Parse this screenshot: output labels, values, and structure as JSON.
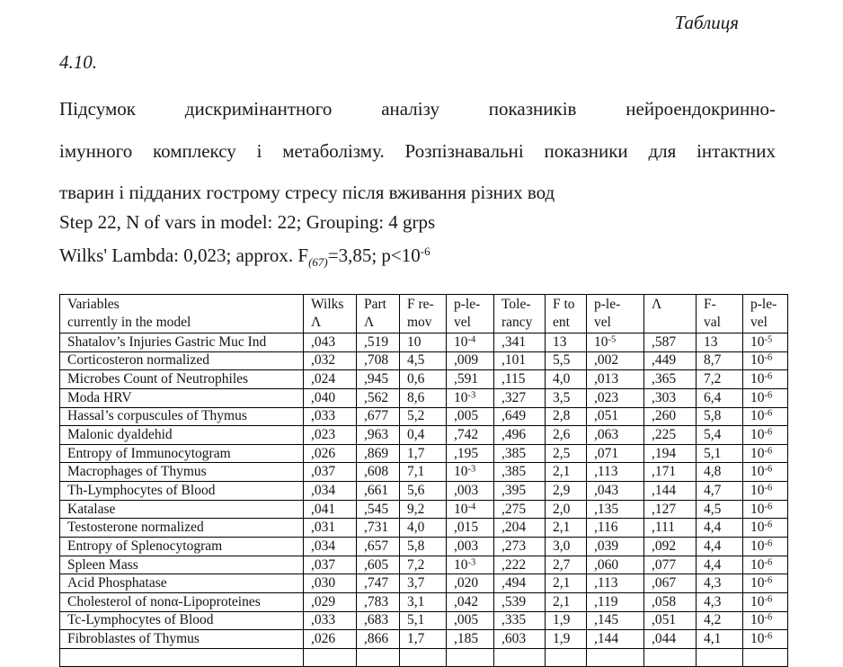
{
  "page": {
    "heading_word": "Таблиця",
    "heading_number": "4.10.",
    "paragraph_lines": [
      "Підсумок дискримінантного аналізу показників нейроендокринно-",
      "імунного комплексу і метаболізму. Розпізнавальні показники для інтактних",
      "тварин і підданих гострому стресу після вживання різних вод"
    ],
    "step_line": "Step 22, N of vars in model: 22; Grouping: 4 grps",
    "wilks_line": {
      "prefix": "Wilks' Lambda: 0,023; approx. F",
      "sub": "(67)",
      "mid": "=3,85; p<10",
      "sup": "-6"
    }
  },
  "table": {
    "headers": [
      "Variables\ncurrently in the model",
      "Wilks\nΛ",
      "Part\nΛ",
      "F re-\nmov",
      "p-le-\nvel",
      "Tole-\nrancy",
      "F to\nent",
      "p-le-\nvel",
      "Λ",
      "F-\nval",
      "p-le-\nvel"
    ],
    "rows": [
      [
        "Shatalov’s Injuries Gastric Muc Ind",
        ",043",
        ",519",
        "10",
        "10^-4",
        ",341",
        "13",
        "10^-5",
        ",587",
        "13",
        "10^-5"
      ],
      [
        "Corticosteron normalized",
        ",032",
        ",708",
        "4,5",
        ",009",
        ",101",
        "5,5",
        ",002",
        ",449",
        "8,7",
        "10^-6"
      ],
      [
        "Microbes Count of Neutrophiles",
        ",024",
        ",945",
        "0,6",
        ",591",
        ",115",
        "4,0",
        ",013",
        ",365",
        "7,2",
        "10^-6"
      ],
      [
        "Moda HRV",
        ",040",
        ",562",
        "8,6",
        "10^-3",
        ",327",
        "3,5",
        ",023",
        ",303",
        "6,4",
        "10^-6"
      ],
      [
        "Hassal’s corpuscules of Thymus",
        ",033",
        ",677",
        "5,2",
        ",005",
        ",649",
        "2,8",
        ",051",
        ",260",
        "5,8",
        "10^-6"
      ],
      [
        "Malonic dyaldehid",
        ",023",
        ",963",
        "0,4",
        ",742",
        ",496",
        "2,6",
        ",063",
        ",225",
        "5,4",
        "10^-6"
      ],
      [
        "Entropy of Immunocytogram",
        ",026",
        ",869",
        "1,7",
        ",195",
        ",385",
        "2,5",
        ",071",
        ",194",
        "5,1",
        "10^-6"
      ],
      [
        "Macrophages of Thymus",
        ",037",
        ",608",
        "7,1",
        "10^-3",
        ",385",
        "2,1",
        ",113",
        ",171",
        "4,8",
        "10^-6"
      ],
      [
        "Th-Lymphocytes of Blood",
        ",034",
        ",661",
        "5,6",
        ",003",
        ",395",
        "2,9",
        ",043",
        ",144",
        "4,7",
        "10^-6"
      ],
      [
        "Katalase",
        ",041",
        ",545",
        "9,2",
        "10^-4",
        ",275",
        "2,0",
        ",135",
        ",127",
        "4,5",
        "10^-6"
      ],
      [
        "Testosterone normalized",
        ",031",
        ",731",
        "4,0",
        ",015",
        ",204",
        "2,1",
        ",116",
        ",111",
        "4,4",
        "10^-6"
      ],
      [
        "Entropy of Splenocytogram",
        ",034",
        ",657",
        "5,8",
        ",003",
        ",273",
        "3,0",
        ",039",
        ",092",
        "4,4",
        "10^-6"
      ],
      [
        "Spleen Mass",
        ",037",
        ",605",
        "7,2",
        "10^-3",
        ",222",
        "2,7",
        ",060",
        ",077",
        "4,4",
        "10^-6"
      ],
      [
        "Acid Phosphatase",
        ",030",
        ",747",
        "3,7",
        ",020",
        ",494",
        "2,1",
        ",113",
        ",067",
        "4,3",
        "10^-6"
      ],
      [
        "Cholesterol of nonα-Lipoproteines",
        ",029",
        ",783",
        "3,1",
        ",042",
        ",539",
        "2,1",
        ",119",
        ",058",
        "4,3",
        "10^-6"
      ],
      [
        "Tc-Lymphocytes of Blood",
        ",033",
        ",683",
        "5,1",
        ",005",
        ",335",
        "1,9",
        ",145",
        ",051",
        "4,2",
        "10^-6"
      ],
      [
        "Fibroblastes of Thymus",
        ",026",
        ",866",
        "1,7",
        ",185",
        ",603",
        "1,9",
        ",144",
        ",044",
        "4,1",
        "10^-6"
      ]
    ],
    "partial_next_row_visible": true
  }
}
